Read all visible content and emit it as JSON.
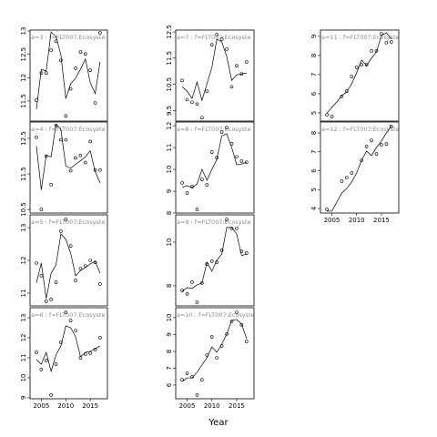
{
  "xlabel": "Year",
  "chart_data": [
    {
      "type": "line",
      "title": "a=3 : f=FLT007:Ecosyste",
      "x": [
        2004,
        2005,
        2006,
        2007,
        2008,
        2009,
        2010,
        2011,
        2012,
        2013,
        2014,
        2015,
        2016,
        2017
      ],
      "xlim": [
        2002.7,
        2018.5
      ],
      "ylim": [
        11.07,
        13.02
      ],
      "yticks": [
        11.5,
        12.0,
        12.5,
        13.0
      ],
      "series": [
        {
          "marker": "circle",
          "color": "#000000",
          "values": [
            11.52,
            12.1,
            12.1,
            12.59,
            12.78,
            12.37,
            11.18,
            11.76,
            12.2,
            12.55,
            12.51,
            12.16,
            11.46,
            12.96
          ]
        },
        {
          "marker": "none",
          "color": "#000000",
          "values": [
            11.32,
            12.18,
            12.14,
            12.98,
            12.88,
            12.49,
            11.55,
            11.87,
            11.99,
            12.18,
            12.4,
            11.89,
            11.66,
            12.34
          ]
        }
      ]
    },
    {
      "type": "line",
      "title": "a=4 : f=FLT007:Ecosyste",
      "x": [
        2004,
        2005,
        2006,
        2007,
        2008,
        2009,
        2010,
        2011,
        2012,
        2013,
        2014,
        2015,
        2016,
        2017
      ],
      "xlim": [
        2002.7,
        2018.5
      ],
      "ylim": [
        10.4,
        12.96
      ],
      "yticks": [
        10.5,
        11.5,
        12.5
      ],
      "series": [
        {
          "marker": "circle",
          "color": "#000000",
          "values": [
            12.53,
            10.5,
            12.0,
            11.2,
            12.86,
            12.46,
            12.46,
            11.59,
            11.95,
            12.02,
            11.82,
            12.41,
            11.61,
            11.61
          ]
        },
        {
          "marker": "none",
          "color": "#000000",
          "values": [
            12.28,
            11.05,
            12.02,
            11.98,
            12.9,
            12.75,
            11.72,
            11.66,
            11.77,
            11.87,
            11.98,
            12.15,
            11.56,
            11.25
          ]
        }
      ]
    },
    {
      "type": "line",
      "title": "a=5 : f=FLT007:Ecosyste",
      "x": [
        2004,
        2005,
        2006,
        2007,
        2008,
        2009,
        2010,
        2011,
        2012,
        2013,
        2014,
        2015,
        2016,
        2017
      ],
      "xlim": [
        2002.7,
        2018.5
      ],
      "ylim": [
        10.61,
        13.39
      ],
      "yticks": [
        11.0,
        12.0,
        13.0
      ],
      "series": [
        {
          "marker": "circle",
          "color": "#000000",
          "values": [
            11.92,
            11.53,
            10.75,
            10.81,
            11.33,
            12.89,
            13.25,
            12.44,
            11.39,
            11.75,
            11.83,
            12.0,
            11.94,
            11.28
          ]
        },
        {
          "marker": "none",
          "color": "#000000",
          "values": [
            11.31,
            11.92,
            10.83,
            11.61,
            11.86,
            12.81,
            12.64,
            12.22,
            11.53,
            11.69,
            11.78,
            11.89,
            11.97,
            11.61
          ]
        }
      ]
    },
    {
      "type": "line",
      "title": "a=6 : f=FLT007:Ecosyste",
      "x": [
        2004,
        2005,
        2006,
        2007,
        2008,
        2009,
        2010,
        2011,
        2012,
        2013,
        2014,
        2015,
        2016,
        2017
      ],
      "xlim": [
        2002.7,
        2018.5
      ],
      "ylim": [
        8.95,
        13.5
      ],
      "yticks": [
        9,
        10,
        11,
        12,
        13
      ],
      "xticks": [
        2005,
        2010,
        2015
      ],
      "series": [
        {
          "marker": "circle",
          "color": "#000000",
          "values": [
            11.27,
            10.41,
            10.86,
            9.14,
            10.68,
            11.77,
            13.27,
            12.86,
            12.36,
            11.0,
            11.18,
            11.23,
            11.41,
            12.0
          ]
        },
        {
          "marker": "none",
          "color": "#000000",
          "values": [
            10.91,
            10.68,
            11.27,
            10.32,
            11.14,
            11.59,
            12.59,
            12.5,
            12.05,
            11.05,
            11.27,
            11.32,
            11.45,
            11.59
          ]
        }
      ]
    },
    {
      "type": "line",
      "title": "a=7 : f=FLT007:Ecosyste",
      "x": [
        2004,
        2005,
        2006,
        2007,
        2008,
        2009,
        2010,
        2011,
        2012,
        2013,
        2014,
        2015,
        2016,
        2017
      ],
      "xlim": [
        2002.7,
        2018.5
      ],
      "ylim": [
        9.1,
        12.57
      ],
      "yticks": [
        9.5,
        10.5,
        11.5,
        12.5
      ],
      "series": [
        {
          "marker": "circle",
          "color": "#000000",
          "values": [
            10.65,
            9.92,
            9.82,
            9.75,
            9.23,
            10.24,
            12.01,
            12.4,
            12.22,
            11.84,
            10.41,
            11.21,
            10.9,
            11.35
          ]
        },
        {
          "marker": "none",
          "color": "#000000",
          "values": [
            10.41,
            10.24,
            9.96,
            10.59,
            9.89,
            10.52,
            11.14,
            12.22,
            12.12,
            11.56,
            10.65,
            10.86,
            10.9,
            10.93
          ]
        }
      ]
    },
    {
      "type": "line",
      "title": "a=8 : f=FLT007:Ecosyste",
      "x": [
        2004,
        2005,
        2006,
        2007,
        2008,
        2009,
        2010,
        2011,
        2012,
        2013,
        2014,
        2015,
        2016,
        2017
      ],
      "xlim": [
        2002.7,
        2018.5
      ],
      "ylim": [
        8.0,
        12.17
      ],
      "yticks": [
        8,
        9,
        10,
        11,
        12
      ],
      "series": [
        {
          "marker": "circle",
          "color": "#000000",
          "values": [
            9.38,
            8.92,
            9.21,
            8.17,
            9.54,
            9.29,
            10.79,
            10.54,
            11.71,
            11.92,
            11.17,
            10.58,
            10.38,
            10.33
          ]
        },
        {
          "marker": "none",
          "color": "#000000",
          "values": [
            9.17,
            9.25,
            9.17,
            9.33,
            10.0,
            9.5,
            10.0,
            10.46,
            11.54,
            11.63,
            11.0,
            10.21,
            10.25,
            10.33
          ]
        }
      ]
    },
    {
      "type": "line",
      "title": "a=9 : f=FLT007:Ecosyste",
      "x": [
        2004,
        2005,
        2006,
        2007,
        2008,
        2009,
        2010,
        2011,
        2012,
        2013,
        2014,
        2015,
        2016,
        2017
      ],
      "xlim": [
        2002.7,
        2018.5
      ],
      "ylim": [
        7.08,
        11.25
      ],
      "yticks": [
        8,
        10
      ],
      "series": [
        {
          "marker": "circle",
          "color": "#000000",
          "values": [
            7.79,
            7.63,
            8.17,
            7.25,
            8.13,
            9.0,
            9.13,
            9.08,
            9.63,
            11.04,
            10.63,
            10.63,
            9.58,
            9.5
          ]
        },
        {
          "marker": "none",
          "color": "#000000",
          "values": [
            7.75,
            7.92,
            7.88,
            8.04,
            8.13,
            9.08,
            8.67,
            9.17,
            9.46,
            10.67,
            10.67,
            10.38,
            9.38,
            9.46
          ]
        }
      ]
    },
    {
      "type": "line",
      "title": "a=10 : f=FLT007:Ecosyste",
      "x": [
        2004,
        2005,
        2006,
        2007,
        2008,
        2009,
        2010,
        2011,
        2012,
        2013,
        2014,
        2015,
        2016,
        2017
      ],
      "xlim": [
        2002.7,
        2018.5
      ],
      "ylim": [
        5.19,
        10.59
      ],
      "yticks": [
        6,
        7,
        8,
        9,
        10
      ],
      "xticks": [
        2005,
        2010,
        2015
      ],
      "series": [
        {
          "marker": "circle",
          "color": "#000000",
          "values": [
            6.32,
            6.7,
            6.49,
            5.41,
            6.32,
            7.78,
            8.86,
            7.62,
            8.32,
            9.03,
            9.78,
            10.32,
            9.57,
            8.59
          ]
        },
        {
          "marker": "none",
          "color": "#000000",
          "values": [
            6.22,
            6.43,
            6.43,
            6.76,
            7.19,
            7.62,
            8.27,
            7.95,
            8.43,
            9.03,
            9.84,
            9.89,
            9.62,
            8.76
          ]
        }
      ]
    },
    {
      "type": "line",
      "title": "a=11 : f=FLT007:Ecosyste",
      "x": [
        2004,
        2005,
        2006,
        2007,
        2008,
        2009,
        2010,
        2011,
        2012,
        2013,
        2014,
        2015,
        2016,
        2017
      ],
      "xlim": [
        2002.7,
        2018.5
      ],
      "ylim": [
        4.57,
        9.33
      ],
      "yticks": [
        5,
        6,
        7,
        8,
        9
      ],
      "series": [
        {
          "marker": "circle",
          "color": "#000000",
          "values": [
            4.9,
            4.81,
            null,
            5.86,
            6.14,
            6.9,
            7.38,
            7.52,
            7.52,
            8.24,
            8.24,
            9.14,
            8.67,
            8.71
          ]
        },
        {
          "marker": "none",
          "color": "#000000",
          "values": [
            4.99,
            5.29,
            5.57,
            5.9,
            6.09,
            6.52,
            7.09,
            7.76,
            7.48,
            7.86,
            8.19,
            9.05,
            9.19,
            8.86
          ]
        }
      ]
    },
    {
      "type": "line",
      "title": "a=12 : f=FLT007:Ecosyste",
      "x": [
        2004,
        2005,
        2006,
        2007,
        2008,
        2009,
        2010,
        2011,
        2012,
        2013,
        2014,
        2015,
        2016,
        2017
      ],
      "xlim": [
        2002.7,
        2018.5
      ],
      "ylim": [
        3.76,
        8.58
      ],
      "yticks": [
        4,
        5,
        6,
        7,
        8
      ],
      "xticks": [
        2005,
        2010,
        2015
      ],
      "series": [
        {
          "marker": "circle",
          "color": "#000000",
          "values": [
            3.95,
            null,
            null,
            5.45,
            5.64,
            5.88,
            null,
            6.55,
            7.28,
            7.61,
            6.89,
            7.37,
            7.42,
            8.34
          ]
        },
        {
          "marker": "none",
          "color": "#000000",
          "values": [
            3.86,
            3.86,
            4.34,
            4.82,
            5.06,
            5.4,
            5.88,
            6.55,
            7.04,
            6.8,
            7.23,
            7.57,
            8.0,
            8.39
          ]
        }
      ]
    }
  ]
}
